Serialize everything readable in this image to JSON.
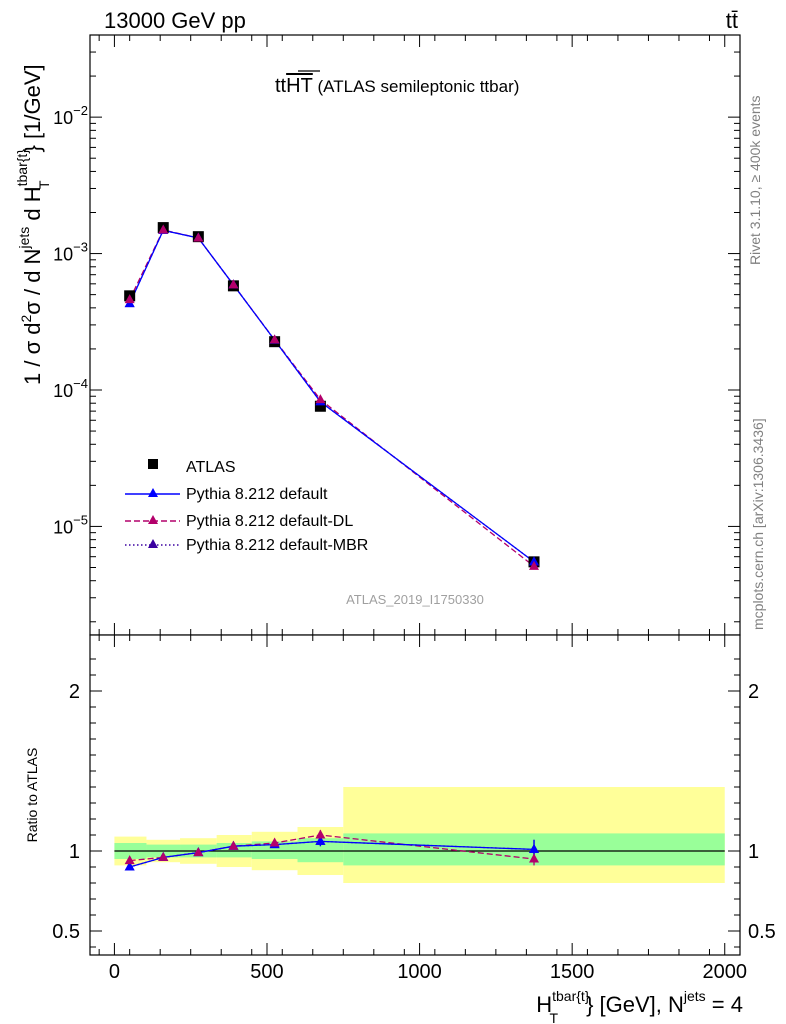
{
  "header": {
    "left": "13000 GeV pp",
    "right": "tt̄"
  },
  "side_text": {
    "rivet": "Rivet 3.1.10, ≥ 400k events",
    "mcplots": "mcplots.cern.ch [arXiv:1306.3436]"
  },
  "analysis_id": "ATLAS_2019_I1750330",
  "colors": {
    "data": "#000000",
    "default": "#0000ff",
    "dl": "#b3006b",
    "mbr": "#3a00a0",
    "band_inner": "#99ff99",
    "band_outer": "#ffff99"
  },
  "chart_data": [
    {
      "type": "scatter",
      "panel": "main",
      "title_main": "tt",
      "title_over": "HT",
      "title_rest": " (ATLAS semileptonic ttbar)",
      "ylabel": {
        "p1": "1 / σ d",
        "p2": "2",
        "p3": "σ / d N",
        "p4": "jets",
        "p5": " d H",
        "p6": "tbar{t}",
        "p7": "T",
        "p8": "} [1/GeV]"
      },
      "y_scale": "log",
      "xlim": [
        -80,
        2050
      ],
      "ylim": [
        1.6e-06,
        0.04
      ],
      "yticks": [
        {
          "value": 1e-05,
          "base": "10",
          "exp": "−5"
        },
        {
          "value": 0.0001,
          "base": "10",
          "exp": "−4"
        },
        {
          "value": 0.001,
          "base": "10",
          "exp": "−3"
        },
        {
          "value": 0.01,
          "base": "10",
          "exp": "−2"
        }
      ],
      "legend": {
        "placement": "bottom-left",
        "entries": [
          {
            "key": "data",
            "label": "ATLAS"
          },
          {
            "key": "default",
            "label": "Pythia 8.212 default"
          },
          {
            "key": "dl",
            "label": "Pythia 8.212 default-DL"
          },
          {
            "key": "mbr",
            "label": "Pythia 8.212 default-MBR"
          }
        ]
      },
      "data": {
        "name": "ATLAS",
        "x": [
          50,
          160,
          275,
          390,
          525,
          675,
          1375
        ],
        "y": [
          0.00049,
          0.00155,
          0.00133,
          0.00058,
          0.000226,
          7.6e-05,
          5.5e-06
        ]
      },
      "series": [
        {
          "key": "default",
          "name": "Pythia 8.212 default",
          "x": [
            50,
            160,
            275,
            390,
            525,
            675,
            1375
          ],
          "y": [
            0.00043,
            0.00148,
            0.0013,
            0.00059,
            0.000232,
            8.2e-05,
            5.5e-06
          ]
        },
        {
          "key": "dl",
          "name": "Pythia 8.212 default-DL",
          "x": [
            50,
            160,
            275,
            390,
            525,
            675,
            1375
          ],
          "y": [
            0.00046,
            0.00149,
            0.0013,
            0.00059,
            0.000233,
            8.5e-05,
            5.1e-06
          ]
        },
        {
          "key": "mbr",
          "name": "Pythia 8.212 default-MBR",
          "x": [
            50,
            160,
            275,
            390,
            525,
            675,
            1375
          ],
          "y": [
            0.00043,
            0.00148,
            0.0013,
            0.00059,
            0.000232,
            8.2e-05,
            5.5e-06
          ]
        }
      ]
    },
    {
      "type": "scatter",
      "panel": "ratio",
      "ylabel": "Ratio to ATLAS",
      "xlabel": {
        "p1": "H",
        "p2": "tbar{t}",
        "p3": "T",
        "p4": "} [GeV], N",
        "p5": "jets",
        "p6": " = 4"
      },
      "xlim": [
        -80,
        2050
      ],
      "ylim": [
        0.35,
        2.35
      ],
      "xticks": [
        {
          "value": 0,
          "label": "0"
        },
        {
          "value": 500,
          "label": "500"
        },
        {
          "value": 1000,
          "label": "1000"
        },
        {
          "value": 1500,
          "label": "1500"
        },
        {
          "value": 2000,
          "label": "2000"
        }
      ],
      "yticks": [
        {
          "value": 0.5,
          "label": "0.5"
        },
        {
          "value": 1,
          "label": "1"
        },
        {
          "value": 2,
          "label": "2"
        }
      ],
      "bands": [
        {
          "xlow": 0,
          "xhigh": 105,
          "inner": [
            0.95,
            1.05
          ],
          "outer": [
            0.91,
            1.09
          ]
        },
        {
          "xlow": 105,
          "xhigh": 215,
          "inner": [
            0.96,
            1.04
          ],
          "outer": [
            0.93,
            1.07
          ]
        },
        {
          "xlow": 215,
          "xhigh": 335,
          "inner": [
            0.96,
            1.04
          ],
          "outer": [
            0.92,
            1.08
          ]
        },
        {
          "xlow": 335,
          "xhigh": 450,
          "inner": [
            0.96,
            1.05
          ],
          "outer": [
            0.9,
            1.1
          ]
        },
        {
          "xlow": 450,
          "xhigh": 600,
          "inner": [
            0.95,
            1.06
          ],
          "outer": [
            0.88,
            1.12
          ]
        },
        {
          "xlow": 600,
          "xhigh": 750,
          "inner": [
            0.93,
            1.08
          ],
          "outer": [
            0.85,
            1.15
          ]
        },
        {
          "xlow": 750,
          "xhigh": 2000,
          "inner": [
            0.91,
            1.11
          ],
          "outer": [
            0.8,
            1.4
          ]
        }
      ],
      "series": [
        {
          "key": "default",
          "name": "Pythia 8.212 default",
          "x": [
            50,
            160,
            275,
            390,
            525,
            675,
            1375
          ],
          "y": [
            0.9,
            0.96,
            0.99,
            1.03,
            1.04,
            1.06,
            1.01
          ],
          "err": [
            0,
            0.01,
            0.01,
            0.01,
            0.015,
            0.03,
            0.06
          ]
        },
        {
          "key": "dl",
          "name": "Pythia 8.212 default-DL",
          "x": [
            50,
            160,
            275,
            390,
            525,
            675,
            1375
          ],
          "y": [
            0.94,
            0.96,
            0.99,
            1.03,
            1.05,
            1.1,
            0.95
          ],
          "err": [
            0,
            0.01,
            0.01,
            0.01,
            0.015,
            0.03,
            0.04
          ]
        },
        {
          "key": "mbr",
          "name": "Pythia 8.212 default-MBR",
          "x": [
            50,
            160,
            275,
            390,
            525,
            675,
            1375
          ],
          "y": [
            0.9,
            0.96,
            0.99,
            1.03,
            1.04,
            1.06,
            1.01
          ],
          "err": [
            0,
            0.01,
            0.01,
            0.01,
            0.015,
            0.03,
            0.06
          ]
        }
      ]
    }
  ]
}
